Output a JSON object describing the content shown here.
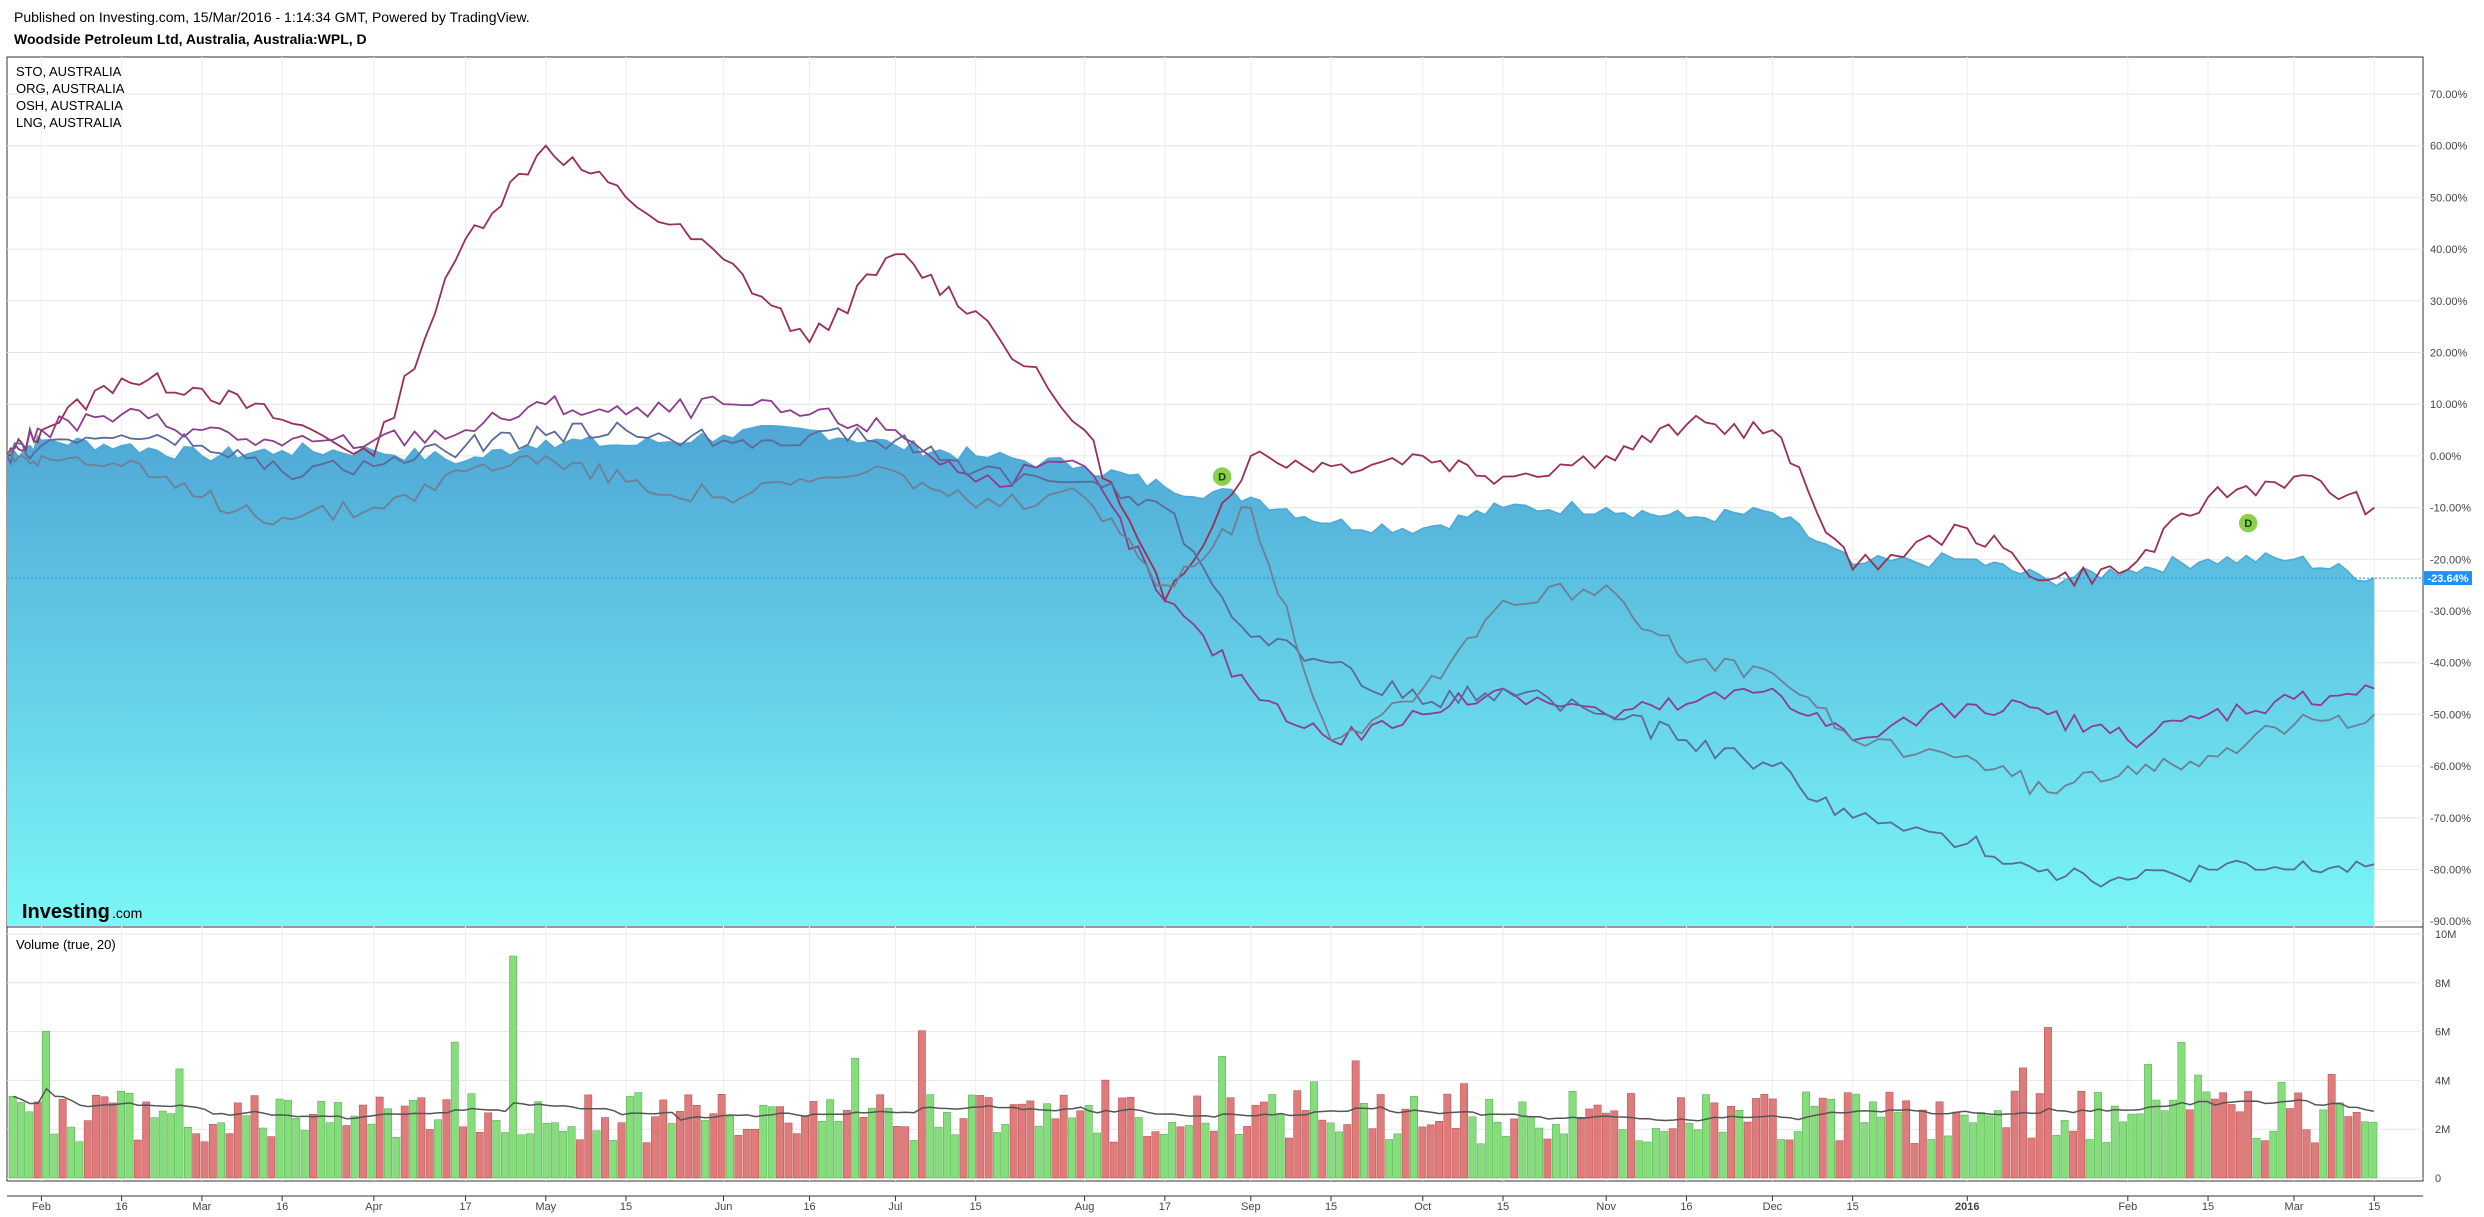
{
  "header": {
    "published": "Published on Investing.com, 15/Mar/2016 - 1:14:34 GMT, Powered by TradingView.",
    "title": "Woodside Petroleum Ltd, Australia, Australia:WPL, D"
  },
  "brand": {
    "name": "Investing",
    "suffix": ".com"
  },
  "colors": {
    "area_top": "#4fa7d6",
    "area_bottom": "#7af7f7",
    "sto": "#9a2f55",
    "org": "#8c3d8f",
    "osh": "#5a6a9a",
    "lng": "#6f7f95",
    "volume_up": "#86dd7c",
    "volume_down": "#e07b7b",
    "ma": "#555555",
    "last_price": "#1e90ff",
    "dividend": "#8bd04a"
  },
  "chart_data": [
    {
      "type": "area",
      "name": "price-comparison",
      "x": [
        "2015-01-27",
        "2015-02-02",
        "2015-02-16",
        "2015-03-02",
        "2015-03-16",
        "2015-04-01",
        "2015-04-17",
        "2015-05-01",
        "2015-05-15",
        "2015-06-01",
        "2015-06-16",
        "2015-07-01",
        "2015-07-15",
        "2015-08-03",
        "2015-08-17",
        "2015-09-01",
        "2015-09-15",
        "2015-10-01",
        "2015-10-15",
        "2015-11-02",
        "2015-11-16",
        "2015-12-01",
        "2015-12-15",
        "2016-01-04",
        "2016-01-18",
        "2016-02-01",
        "2016-02-15",
        "2016-03-01",
        "2016-03-15"
      ],
      "x_tick_labels": [
        "Feb",
        "16",
        "Mar",
        "16",
        "Apr",
        "17",
        "May",
        "15",
        "Jun",
        "16",
        "Jul",
        "15",
        "Aug",
        "17",
        "Sep",
        "15",
        "Oct",
        "15",
        "Nov",
        "16",
        "Dec",
        "15",
        "2016",
        "Feb",
        "15",
        "Mar",
        "15"
      ],
      "y_tick_labels": [
        "70.00%",
        "60.00%",
        "50.00%",
        "40.00%",
        "30.00%",
        "20.00%",
        "10.00%",
        "0.00%",
        "-10.00%",
        "-20.00%",
        "-30.00%",
        "-40.00%",
        "-50.00%",
        "-60.00%",
        "-70.00%",
        "-80.00%",
        "-90.00%"
      ],
      "ylim": [
        -90,
        75
      ],
      "grid": true,
      "legend_position": "top-left",
      "series": [
        {
          "name": "WPL",
          "kind": "area",
          "values": [
            0,
            3,
            2,
            0,
            1,
            1,
            -1,
            3,
            2,
            4,
            5,
            2,
            0,
            -2,
            -6,
            -8,
            -13,
            -14,
            -10,
            -10,
            -12,
            -11,
            -21,
            -20,
            -24,
            -22,
            -20,
            -20,
            -23.64
          ]
        },
        {
          "name": "STO, AUSTRALIA",
          "kind": "line",
          "values": [
            0,
            5,
            15,
            13,
            7,
            0,
            42,
            60,
            50,
            38,
            22,
            39,
            28,
            5,
            -28,
            0,
            -2,
            0,
            -4,
            0,
            6,
            5,
            -22,
            -14,
            -24,
            -22,
            -8,
            -4,
            -10
          ]
        },
        {
          "name": "ORG, AUSTRALIA",
          "kind": "line",
          "values": [
            0,
            5,
            8,
            5,
            2,
            3,
            5,
            10,
            8,
            10,
            8,
            5,
            -5,
            -2,
            -28,
            -45,
            -55,
            -50,
            -45,
            -50,
            -48,
            -45,
            -55,
            -48,
            -50,
            -55,
            -50,
            -47,
            -45
          ]
        },
        {
          "name": "OSH, AUSTRALIA",
          "kind": "line",
          "values": [
            0,
            2,
            4,
            2,
            -3,
            -2,
            2,
            4,
            5,
            3,
            4,
            3,
            -3,
            -5,
            -10,
            -35,
            -40,
            -48,
            -45,
            -50,
            -55,
            -60,
            -70,
            -75,
            -80,
            -82,
            -80,
            -80,
            -79
          ]
        },
        {
          "name": "LNG, AUSTRALIA",
          "kind": "line",
          "values": [
            0,
            0,
            -2,
            -8,
            -12,
            -10,
            -3,
            0,
            -5,
            -8,
            -5,
            -3,
            -10,
            -8,
            -25,
            -10,
            -55,
            -45,
            -28,
            -25,
            -40,
            -42,
            -55,
            -58,
            -65,
            -60,
            -58,
            -52,
            -50
          ]
        }
      ],
      "last_value_label": "-23.64%",
      "markers": [
        {
          "label": "D",
          "x": "2015-08-27",
          "y": -4
        },
        {
          "label": "D",
          "x": "2016-02-22",
          "y": -13
        }
      ]
    },
    {
      "type": "bar",
      "name": "volume",
      "title": "Volume (true, 20)",
      "y_tick_labels": [
        "10M",
        "8M",
        "6M",
        "4M",
        "2M",
        "0"
      ],
      "ylim": [
        0,
        10
      ],
      "unit": "M",
      "grid": true
    }
  ]
}
